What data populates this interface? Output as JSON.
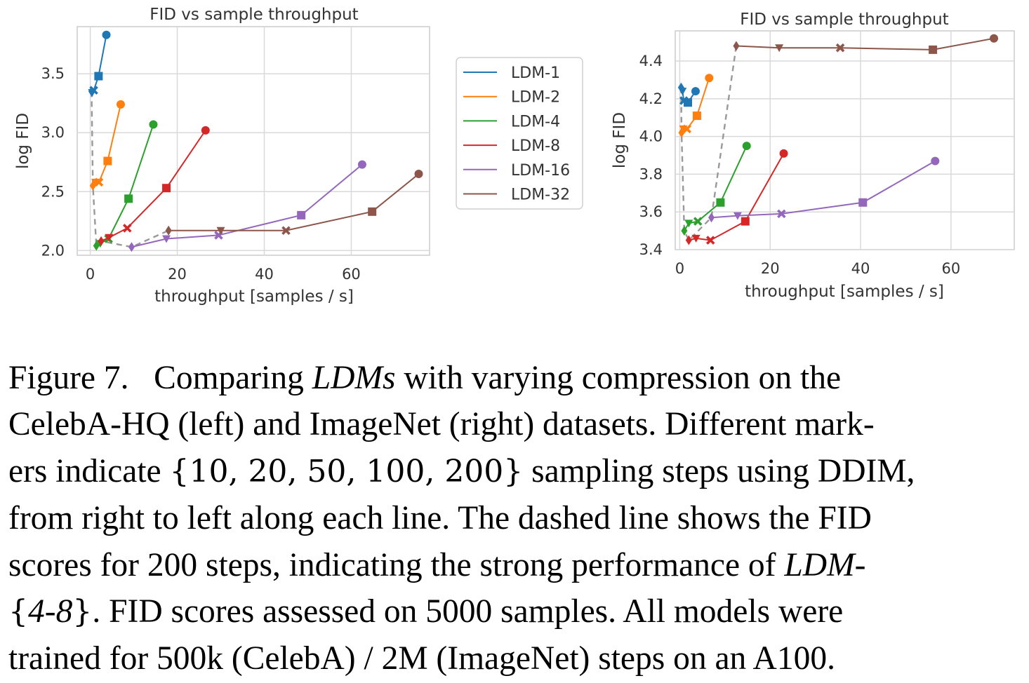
{
  "chart_data": [
    {
      "type": "line",
      "panel": "left",
      "dataset": "CelebA-HQ",
      "title": "FID vs sample throughput",
      "xlabel": "throughput [samples / s]",
      "ylabel": "log FID",
      "xlim": [
        -3,
        78
      ],
      "ylim": [
        1.96,
        3.9
      ],
      "xticks": [
        0,
        20,
        40,
        60
      ],
      "yticks": [
        2.0,
        2.5,
        3.0,
        3.5
      ],
      "ytick_labels": [
        "2.0",
        "2.5",
        "3.0",
        "3.5"
      ],
      "grid": true,
      "legend_position": "outside-right",
      "markers_order_right_to_left": [
        "circle",
        "square",
        "x",
        "triangle-down",
        "diamond"
      ],
      "series": [
        {
          "name": "LDM-1",
          "color": "#1f77b4",
          "points": [
            [
              3.7,
              3.83
            ],
            [
              1.9,
              3.48
            ],
            [
              0.8,
              3.36
            ],
            [
              0.45,
              3.34
            ],
            [
              0.3,
              3.35
            ]
          ]
        },
        {
          "name": "LDM-2",
          "color": "#ff7f0e",
          "points": [
            [
              7.0,
              3.24
            ],
            [
              4.0,
              2.76
            ],
            [
              2.0,
              2.58
            ],
            [
              1.2,
              2.58
            ],
            [
              0.6,
              2.55
            ]
          ]
        },
        {
          "name": "LDM-4",
          "color": "#2ca02c",
          "points": [
            [
              14.5,
              3.07
            ],
            [
              8.8,
              2.44
            ],
            [
              4.2,
              2.1
            ],
            [
              2.3,
              2.06
            ],
            [
              1.4,
              2.04
            ]
          ]
        },
        {
          "name": "LDM-8",
          "color": "#d62728",
          "points": [
            [
              26.5,
              3.02
            ],
            [
              17.5,
              2.53
            ],
            [
              8.5,
              2.19
            ],
            [
              4.3,
              2.11
            ],
            [
              2.5,
              2.08
            ]
          ]
        },
        {
          "name": "LDM-16",
          "color": "#9467bd",
          "points": [
            [
              62.5,
              2.73
            ],
            [
              48.5,
              2.3
            ],
            [
              29.5,
              2.13
            ],
            [
              17.5,
              2.1
            ],
            [
              9.5,
              2.03
            ]
          ]
        },
        {
          "name": "LDM-32",
          "color": "#8c564b",
          "points": [
            [
              75.5,
              2.65
            ],
            [
              64.8,
              2.33
            ],
            [
              45.0,
              2.17
            ],
            [
              30.0,
              2.17
            ],
            [
              18.0,
              2.17
            ]
          ]
        }
      ],
      "dashed_200_steps": [
        [
          0.3,
          3.35
        ],
        [
          0.6,
          2.55
        ],
        [
          1.4,
          2.04
        ],
        [
          2.5,
          2.08
        ],
        [
          9.5,
          2.03
        ],
        [
          18.0,
          2.17
        ]
      ]
    },
    {
      "type": "line",
      "panel": "right",
      "dataset": "ImageNet",
      "title": "FID vs sample throughput",
      "xlabel": "throughput [samples / s]",
      "ylabel": "log FID",
      "xlim": [
        -1,
        74
      ],
      "ylim": [
        3.4,
        4.56
      ],
      "xticks": [
        0,
        20,
        40,
        60
      ],
      "yticks": [
        3.4,
        3.6,
        3.8,
        4.0,
        4.2,
        4.4
      ],
      "ytick_labels": [
        "3.4",
        "3.6",
        "3.8",
        "4.0",
        "4.2",
        "4.4"
      ],
      "grid": true,
      "series": [
        {
          "name": "LDM-1",
          "color": "#1f77b4",
          "points": [
            [
              3.5,
              4.24
            ],
            [
              1.8,
              4.18
            ],
            [
              0.9,
              4.19
            ],
            [
              0.6,
              4.24
            ],
            [
              0.3,
              4.26
            ]
          ]
        },
        {
          "name": "LDM-2",
          "color": "#ff7f0e",
          "points": [
            [
              6.5,
              4.31
            ],
            [
              3.8,
              4.11
            ],
            [
              1.6,
              4.04
            ],
            [
              0.8,
              4.04
            ],
            [
              0.4,
              4.02
            ]
          ]
        },
        {
          "name": "LDM-4",
          "color": "#2ca02c",
          "points": [
            [
              14.8,
              3.95
            ],
            [
              9.0,
              3.65
            ],
            [
              4.0,
              3.55
            ],
            [
              2.0,
              3.54
            ],
            [
              1.0,
              3.5
            ]
          ]
        },
        {
          "name": "LDM-8",
          "color": "#d62728",
          "points": [
            [
              23.0,
              3.91
            ],
            [
              14.5,
              3.55
            ],
            [
              6.8,
              3.45
            ],
            [
              3.6,
              3.46
            ],
            [
              2.0,
              3.45
            ]
          ]
        },
        {
          "name": "LDM-16",
          "color": "#9467bd",
          "points": [
            [
              56.5,
              3.87
            ],
            [
              40.5,
              3.65
            ],
            [
              22.5,
              3.59
            ],
            [
              12.8,
              3.58
            ],
            [
              7.0,
              3.57
            ]
          ]
        },
        {
          "name": "LDM-32",
          "color": "#8c564b",
          "points": [
            [
              69.5,
              4.52
            ],
            [
              56.0,
              4.46
            ],
            [
              35.5,
              4.47
            ],
            [
              22.0,
              4.47
            ],
            [
              12.5,
              4.48
            ]
          ]
        }
      ],
      "dashed_200_steps": [
        [
          0.3,
          4.26
        ],
        [
          0.4,
          4.02
        ],
        [
          1.0,
          3.5
        ],
        [
          2.0,
          3.45
        ],
        [
          7.0,
          3.57
        ],
        [
          12.5,
          4.48
        ]
      ]
    }
  ],
  "caption": {
    "label": "Figure 7.",
    "l1_a": "Comparing ",
    "l1_b": "LDMs",
    "l1_c": " with varying compression on the",
    "l2": "CelebA-HQ (left) and ImageNet (right) datasets. Different mark-",
    "l3_a": "ers indicate ",
    "l3_b": "{10, 20, 50, 100, 200}",
    "l3_c": " sampling steps using DDIM,",
    "l4": "from right to left along each line. The dashed line shows the FID",
    "l5_a": "scores for 200 steps, indicating the strong performance of ",
    "l5_b": "LDM-",
    "l6_a": "{",
    "l6_b": "4-8",
    "l6_c": "}",
    "l6_d": ". FID scores assessed on 5000 samples. All models were",
    "l7": "trained for 500k (CelebA) / 2M (ImageNet) steps on an A100."
  }
}
